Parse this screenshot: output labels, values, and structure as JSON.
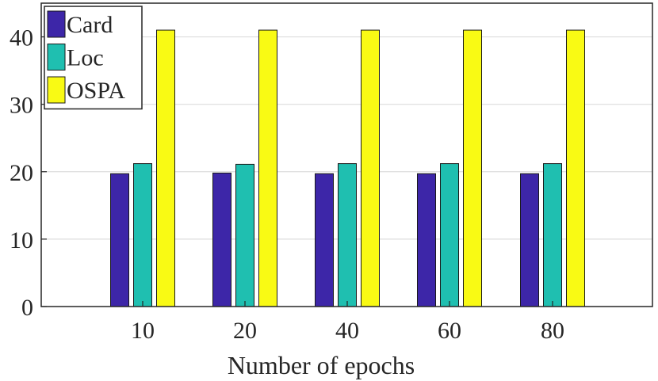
{
  "chart_data": {
    "type": "bar",
    "categories": [
      "10",
      "20",
      "40",
      "60",
      "80"
    ],
    "series": [
      {
        "name": "Card",
        "color": "#3d26a8",
        "values": [
          19.7,
          19.8,
          19.7,
          19.7,
          19.7
        ]
      },
      {
        "name": "Loc",
        "color": "#1fbfb0",
        "values": [
          21.2,
          21.1,
          21.2,
          21.2,
          21.2
        ]
      },
      {
        "name": "OSPA",
        "color": "#f9fa14",
        "values": [
          41,
          41,
          41,
          41,
          41
        ]
      }
    ],
    "title": "",
    "xlabel": "Number of epochs",
    "ylabel": "",
    "ylim": [
      0,
      45
    ],
    "yticks": [
      "0",
      "10",
      "20",
      "30",
      "40"
    ],
    "grid": "horizontal",
    "legend": "top-left"
  }
}
